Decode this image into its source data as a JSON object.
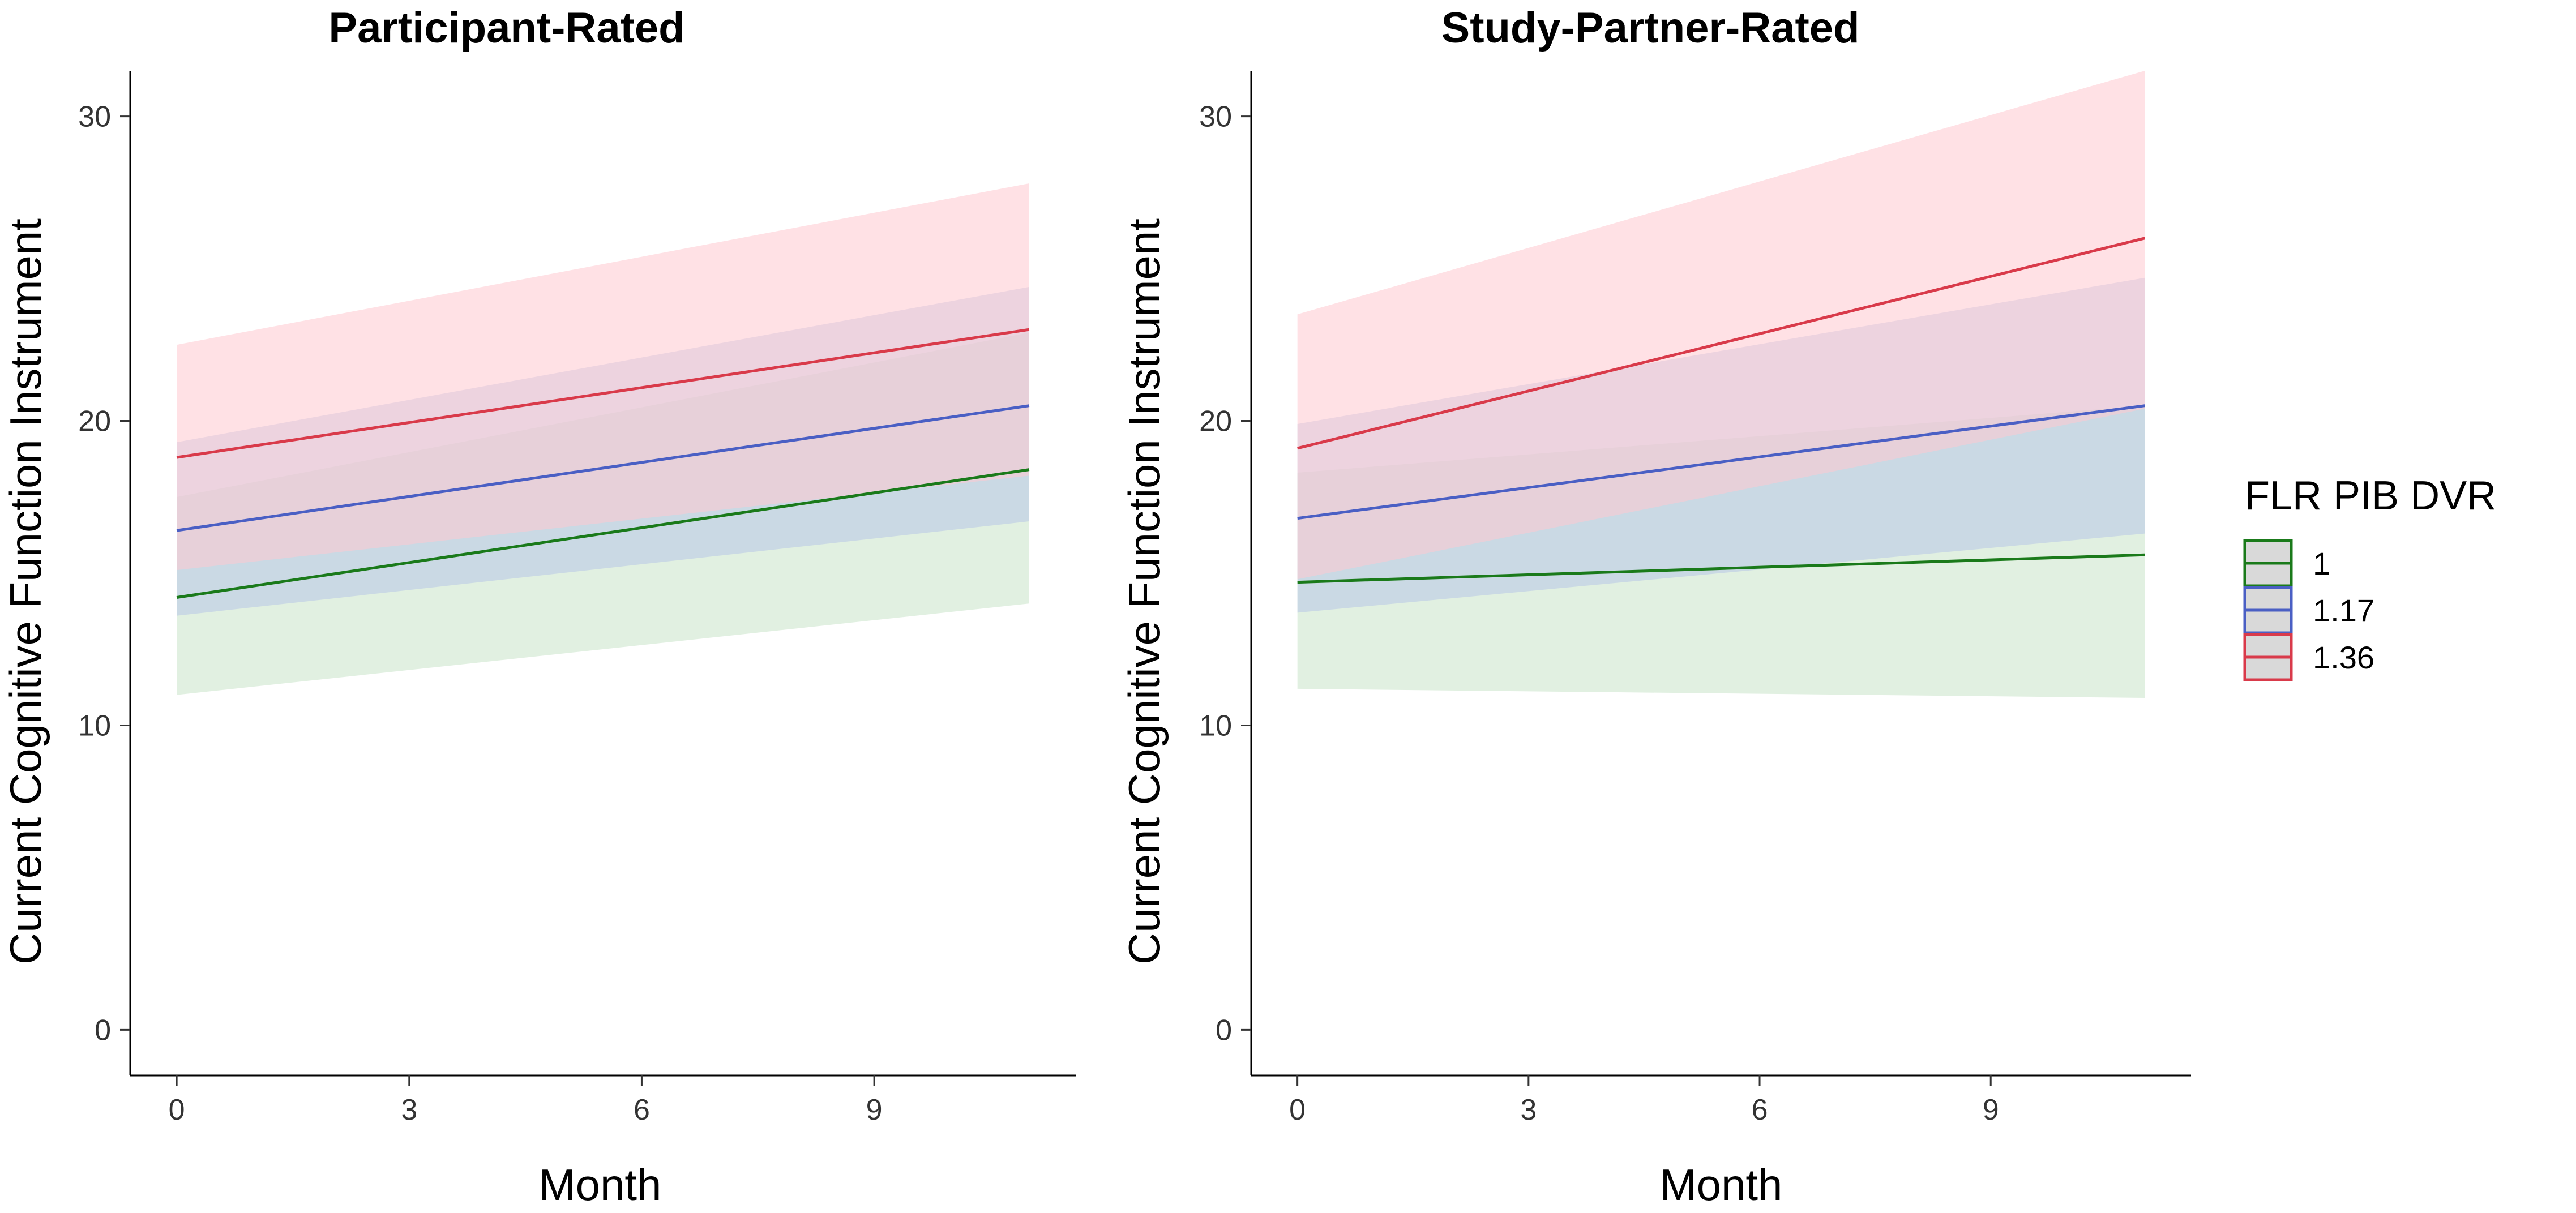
{
  "legend": {
    "title": "FLR PIB DVR",
    "entries": [
      {
        "label": "1",
        "color": "#1a7a1a"
      },
      {
        "label": "1.17",
        "color": "#4a5fc4"
      },
      {
        "label": "1.36",
        "color": "#d93a4a"
      }
    ]
  },
  "fill_colors": {
    "1": "#c9e3c9",
    "1.17": "#b8c7e8",
    "1.36": "#ffc9cf"
  },
  "chart_data": [
    {
      "type": "line",
      "title": "Participant-Rated",
      "xlabel": "Month",
      "ylabel": "Current Cognitive Function Instrument",
      "xlim": [
        -0.6,
        11.6
      ],
      "ylim": [
        -1.5,
        31.5
      ],
      "xticks": [
        0,
        3,
        6,
        9
      ],
      "xtick_labels": [
        "0",
        "3",
        "6",
        "9"
      ],
      "yticks": [
        0,
        10,
        20,
        30
      ],
      "ytick_labels": [
        "0",
        "10",
        "20",
        "30"
      ],
      "x": [
        0,
        11
      ],
      "series": [
        {
          "name": "1",
          "values": [
            14.2,
            18.4
          ],
          "ci_lower": [
            11.0,
            14.0
          ],
          "ci_upper": [
            17.5,
            22.9
          ]
        },
        {
          "name": "1.17",
          "values": [
            16.4,
            20.5
          ],
          "ci_lower": [
            13.6,
            16.7
          ],
          "ci_upper": [
            19.3,
            24.4
          ]
        },
        {
          "name": "1.36",
          "values": [
            18.8,
            23.0
          ],
          "ci_lower": [
            15.1,
            18.2
          ],
          "ci_upper": [
            22.5,
            27.8
          ]
        }
      ]
    },
    {
      "type": "line",
      "title": "Study-Partner-Rated",
      "xlabel": "Month",
      "ylabel": "Current Cognitive Function Instrument",
      "xlim": [
        -0.6,
        11.6
      ],
      "ylim": [
        -1.5,
        31.5
      ],
      "xticks": [
        0,
        3,
        6,
        9
      ],
      "xtick_labels": [
        "0",
        "3",
        "6",
        "9"
      ],
      "yticks": [
        0,
        10,
        20,
        30
      ],
      "ytick_labels": [
        "0",
        "10",
        "20",
        "30"
      ],
      "x": [
        0,
        11
      ],
      "series": [
        {
          "name": "1",
          "values": [
            14.7,
            15.6
          ],
          "ci_lower": [
            11.2,
            10.9
          ],
          "ci_upper": [
            18.3,
            20.5
          ]
        },
        {
          "name": "1.17",
          "values": [
            16.8,
            20.5
          ],
          "ci_lower": [
            13.7,
            16.3
          ],
          "ci_upper": [
            19.9,
            24.7
          ]
        },
        {
          "name": "1.36",
          "values": [
            19.1,
            26.0
          ],
          "ci_lower": [
            14.8,
            20.4
          ],
          "ci_upper": [
            23.5,
            31.5
          ]
        }
      ]
    }
  ]
}
